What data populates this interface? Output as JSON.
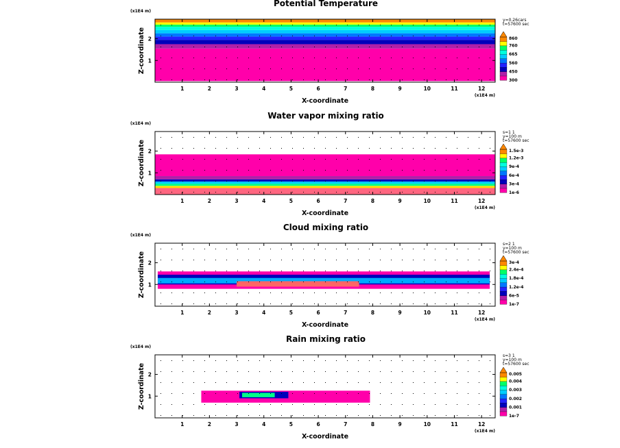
{
  "chart_data": [
    {
      "type": "heatmap",
      "title": "Potential Temperature",
      "xlabel": "X-coordinate",
      "ylabel": "Z-coordinate",
      "x_unit": "(x1E4 m)",
      "z_unit": "(x1E4 m)",
      "xlim": [
        0,
        12.5
      ],
      "zlim": [
        0,
        2.9
      ],
      "x_ticks": [
        "1",
        "2",
        "3",
        "4",
        "5",
        "6",
        "7",
        "8",
        "9",
        "10",
        "11",
        "12"
      ],
      "z_ticks": [
        "1",
        "2"
      ],
      "info": [
        "y=0.26cars",
        "t=57600 sec"
      ],
      "colorbar_labels": [
        "300",
        "450",
        "560",
        "665",
        "760",
        "860"
      ],
      "field_layers": [
        {
          "z_from": 0.05,
          "z_to": 1.55,
          "color": "#ff00aa"
        },
        {
          "z_from": 1.55,
          "z_to": 1.75,
          "color": "#b01fa8"
        },
        {
          "z_from": 1.75,
          "z_to": 1.95,
          "color": "#0000bb"
        },
        {
          "z_from": 1.95,
          "z_to": 2.1,
          "color": "#2222ff"
        },
        {
          "z_from": 2.1,
          "z_to": 2.25,
          "color": "#0077ff"
        },
        {
          "z_from": 2.25,
          "z_to": 2.4,
          "color": "#00ccff"
        },
        {
          "z_from": 2.4,
          "z_to": 2.55,
          "color": "#00ffdd"
        },
        {
          "z_from": 2.55,
          "z_to": 2.65,
          "color": "#00ff66"
        },
        {
          "z_from": 2.65,
          "z_to": 2.75,
          "color": "#ffff00"
        },
        {
          "z_from": 2.75,
          "z_to": 2.9,
          "color": "#ff8800"
        }
      ]
    },
    {
      "type": "heatmap",
      "title": "Water vapor mixing ratio",
      "xlabel": "X-coordinate",
      "ylabel": "Z-coordinate",
      "x_unit": "(x1E4 m)",
      "z_unit": "(x1E4 m)",
      "xlim": [
        0,
        12.5
      ],
      "zlim": [
        0,
        2.9
      ],
      "x_ticks": [
        "1",
        "2",
        "3",
        "4",
        "5",
        "6",
        "7",
        "8",
        "9",
        "10",
        "11",
        "12"
      ],
      "z_ticks": [
        "1",
        "2"
      ],
      "info": [
        "s=1 1",
        "y=100 m",
        "t=57600 sec"
      ],
      "colorbar_labels": [
        "1e-6",
        "3e-4",
        "6e-4",
        "9e-4",
        "1.2e-3",
        "1.5e-3"
      ],
      "field_layers": [
        {
          "z_from": 0.0,
          "z_to": 0.3,
          "color": "#ff6680"
        },
        {
          "z_from": 0.3,
          "z_to": 0.4,
          "color": "#ffdd00"
        },
        {
          "z_from": 0.4,
          "z_to": 0.5,
          "color": "#00ff88"
        },
        {
          "z_from": 0.5,
          "z_to": 0.6,
          "color": "#00ccff"
        },
        {
          "z_from": 0.6,
          "z_to": 0.7,
          "color": "#0000bb"
        },
        {
          "z_from": 0.7,
          "z_to": 0.85,
          "color": "#b01fa8"
        },
        {
          "z_from": 0.85,
          "z_to": 1.85,
          "color": "#ff00aa"
        }
      ]
    },
    {
      "type": "heatmap",
      "title": "Cloud mixing ratio",
      "xlabel": "X-coordinate",
      "ylabel": "Z-coordinate",
      "x_unit": "(x1E4 m)",
      "z_unit": "(x1E4 m)",
      "xlim": [
        0,
        12.5
      ],
      "zlim": [
        0,
        2.9
      ],
      "x_ticks": [
        "1",
        "2",
        "3",
        "4",
        "5",
        "6",
        "7",
        "8",
        "9",
        "10",
        "11",
        "12"
      ],
      "z_ticks": [
        "1",
        "2"
      ],
      "info": [
        "s=2 1",
        "y=100 m",
        "t=57600 sec"
      ],
      "colorbar_labels": [
        "1e-7",
        "6e-5",
        "1.2e-4",
        "1.8e-4",
        "2.4e-4",
        "3e-4"
      ],
      "field_layers": [
        {
          "z_from": 0.8,
          "z_to": 1.6,
          "color": "#ff00aa"
        },
        {
          "z_from": 1.0,
          "z_to": 1.45,
          "color": "#0000bb"
        },
        {
          "z_from": 1.05,
          "z_to": 1.3,
          "color": "#00aaff"
        },
        {
          "z_from": 0.9,
          "z_to": 1.15,
          "color": "#ff6666"
        }
      ]
    },
    {
      "type": "heatmap",
      "title": "Rain mixing ratio",
      "xlabel": "X-coordinate",
      "ylabel": "Z-coordinate",
      "x_unit": "(x1E4 m)",
      "z_unit": "(x1E4 m)",
      "xlim": [
        0,
        12.5
      ],
      "zlim": [
        0,
        2.9
      ],
      "x_ticks": [
        "1",
        "2",
        "3",
        "4",
        "5",
        "6",
        "7",
        "8",
        "9",
        "10",
        "11",
        "12"
      ],
      "z_ticks": [
        "1",
        "2"
      ],
      "info": [
        "s=3 1",
        "y=100 m",
        "t=57600 sec"
      ],
      "colorbar_labels": [
        "1e-7",
        "0.001",
        "0.002",
        "0.003",
        "0.004",
        "0.005"
      ],
      "field_layers": [
        {
          "z_from": 0.7,
          "z_to": 1.25,
          "color": "#ff00aa"
        },
        {
          "z_from": 0.9,
          "z_to": 1.2,
          "color": "#0000bb"
        },
        {
          "z_from": 0.95,
          "z_to": 1.15,
          "color": "#00ff88"
        }
      ]
    }
  ]
}
